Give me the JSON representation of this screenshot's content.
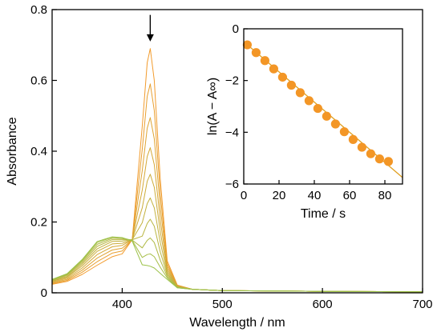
{
  "chart_data": [
    {
      "type": "line",
      "title": "",
      "xlabel": "Wavelength / nm",
      "ylabel": "Absorbance",
      "xlim": [
        330,
        700
      ],
      "ylim": [
        0,
        0.8
      ],
      "xticks": [
        400,
        500,
        600,
        700
      ],
      "xtick_labels": [
        "400",
        "500",
        "600",
        "700"
      ],
      "yticks": [
        0,
        0.2,
        0.4,
        0.6,
        0.8
      ],
      "ytick_labels": [
        "0",
        "0.2",
        "0.4",
        "0.6",
        "0.8"
      ],
      "grid": false,
      "annotation": {
        "type": "down-arrow",
        "x": 428,
        "y_from": 0.785,
        "y_to": 0.71
      },
      "series_color_start": "#f29b2c",
      "series_color_end": "#9cc24a",
      "series": [
        {
          "x": [
            330,
            345,
            360,
            375,
            390,
            400,
            410,
            420,
            425,
            428,
            432,
            438,
            445,
            455,
            470,
            500,
            600,
            700
          ],
          "y": [
            0.024,
            0.032,
            0.052,
            0.078,
            0.102,
            0.11,
            0.15,
            0.47,
            0.65,
            0.69,
            0.6,
            0.32,
            0.09,
            0.022,
            0.01,
            0.006,
            0.004,
            0.003
          ]
        },
        {
          "x": [
            330,
            345,
            360,
            375,
            390,
            400,
            410,
            420,
            425,
            428,
            432,
            438,
            445,
            455,
            470,
            500,
            600,
            700
          ],
          "y": [
            0.026,
            0.035,
            0.058,
            0.088,
            0.112,
            0.118,
            0.15,
            0.405,
            0.555,
            0.59,
            0.515,
            0.28,
            0.082,
            0.021,
            0.01,
            0.006,
            0.004,
            0.003
          ]
        },
        {
          "x": [
            330,
            345,
            360,
            375,
            390,
            400,
            410,
            420,
            425,
            428,
            432,
            438,
            445,
            455,
            470,
            500,
            600,
            700
          ],
          "y": [
            0.028,
            0.038,
            0.064,
            0.098,
            0.121,
            0.126,
            0.15,
            0.345,
            0.465,
            0.495,
            0.435,
            0.242,
            0.075,
            0.02,
            0.01,
            0.006,
            0.004,
            0.003
          ]
        },
        {
          "x": [
            330,
            345,
            360,
            375,
            390,
            400,
            410,
            420,
            425,
            428,
            432,
            438,
            445,
            455,
            470,
            500,
            600,
            700
          ],
          "y": [
            0.03,
            0.041,
            0.07,
            0.108,
            0.13,
            0.134,
            0.15,
            0.29,
            0.385,
            0.41,
            0.362,
            0.205,
            0.068,
            0.019,
            0.01,
            0.006,
            0.004,
            0.003
          ]
        },
        {
          "x": [
            330,
            345,
            360,
            375,
            390,
            400,
            410,
            420,
            425,
            428,
            432,
            438,
            445,
            455,
            470,
            500,
            600,
            700
          ],
          "y": [
            0.032,
            0.044,
            0.076,
            0.117,
            0.138,
            0.14,
            0.15,
            0.24,
            0.315,
            0.335,
            0.298,
            0.172,
            0.062,
            0.018,
            0.01,
            0.006,
            0.004,
            0.003
          ]
        },
        {
          "x": [
            330,
            345,
            360,
            375,
            390,
            400,
            410,
            420,
            425,
            428,
            432,
            438,
            445,
            455,
            470,
            500,
            600,
            700
          ],
          "y": [
            0.033,
            0.046,
            0.081,
            0.124,
            0.145,
            0.146,
            0.15,
            0.198,
            0.252,
            0.268,
            0.24,
            0.142,
            0.056,
            0.017,
            0.01,
            0.006,
            0.004,
            0.003
          ]
        },
        {
          "x": [
            330,
            345,
            360,
            375,
            390,
            400,
            410,
            420,
            425,
            428,
            432,
            438,
            445,
            455,
            470,
            500,
            600,
            700
          ],
          "y": [
            0.035,
            0.049,
            0.085,
            0.131,
            0.15,
            0.15,
            0.15,
            0.16,
            0.196,
            0.208,
            0.188,
            0.115,
            0.051,
            0.016,
            0.01,
            0.006,
            0.004,
            0.003
          ]
        },
        {
          "x": [
            330,
            345,
            360,
            375,
            390,
            400,
            410,
            420,
            425,
            428,
            432,
            438,
            445,
            455,
            470,
            500,
            600,
            700
          ],
          "y": [
            0.036,
            0.051,
            0.089,
            0.137,
            0.154,
            0.153,
            0.149,
            0.127,
            0.148,
            0.155,
            0.142,
            0.092,
            0.046,
            0.015,
            0.01,
            0.006,
            0.004,
            0.003
          ]
        },
        {
          "x": [
            330,
            345,
            360,
            375,
            390,
            400,
            410,
            420,
            425,
            428,
            432,
            438,
            445,
            455,
            470,
            500,
            600,
            700
          ],
          "y": [
            0.037,
            0.053,
            0.092,
            0.142,
            0.157,
            0.155,
            0.148,
            0.1,
            0.108,
            0.11,
            0.102,
            0.072,
            0.042,
            0.014,
            0.01,
            0.006,
            0.004,
            0.003
          ]
        },
        {
          "x": [
            330,
            345,
            360,
            375,
            390,
            400,
            410,
            420,
            425,
            428,
            432,
            438,
            445,
            455,
            470,
            500,
            600,
            700
          ],
          "y": [
            0.038,
            0.054,
            0.094,
            0.145,
            0.158,
            0.156,
            0.146,
            0.079,
            0.077,
            0.075,
            0.07,
            0.055,
            0.038,
            0.014,
            0.01,
            0.006,
            0.004,
            0.003
          ]
        }
      ]
    },
    {
      "type": "scatter",
      "title": "",
      "xlabel": "Time / s",
      "ylabel": "ln(A − A∞)",
      "xlim": [
        0,
        90
      ],
      "ylim": [
        -6,
        0
      ],
      "xticks": [
        0,
        20,
        40,
        60,
        80
      ],
      "xtick_labels": [
        "0",
        "20",
        "40",
        "60",
        "80"
      ],
      "yticks": [
        0,
        -2,
        -4,
        -6
      ],
      "ytick_labels": [
        "0",
        "−2",
        "−4",
        "−6"
      ],
      "grid": false,
      "marker_color": "#f39626",
      "fit_line_color": "#e0a020",
      "points": {
        "x": [
          2,
          7,
          12,
          17,
          22,
          27,
          32,
          37,
          42,
          47,
          52,
          57,
          62,
          67,
          72,
          77,
          82
        ],
        "y": [
          -0.62,
          -0.92,
          -1.23,
          -1.55,
          -1.87,
          -2.18,
          -2.47,
          -2.78,
          -3.08,
          -3.38,
          -3.68,
          -3.98,
          -4.28,
          -4.58,
          -4.83,
          -5.03,
          -5.13
        ]
      },
      "fit_line": {
        "x": [
          0,
          90
        ],
        "y": [
          -0.5,
          -5.75
        ]
      }
    }
  ]
}
